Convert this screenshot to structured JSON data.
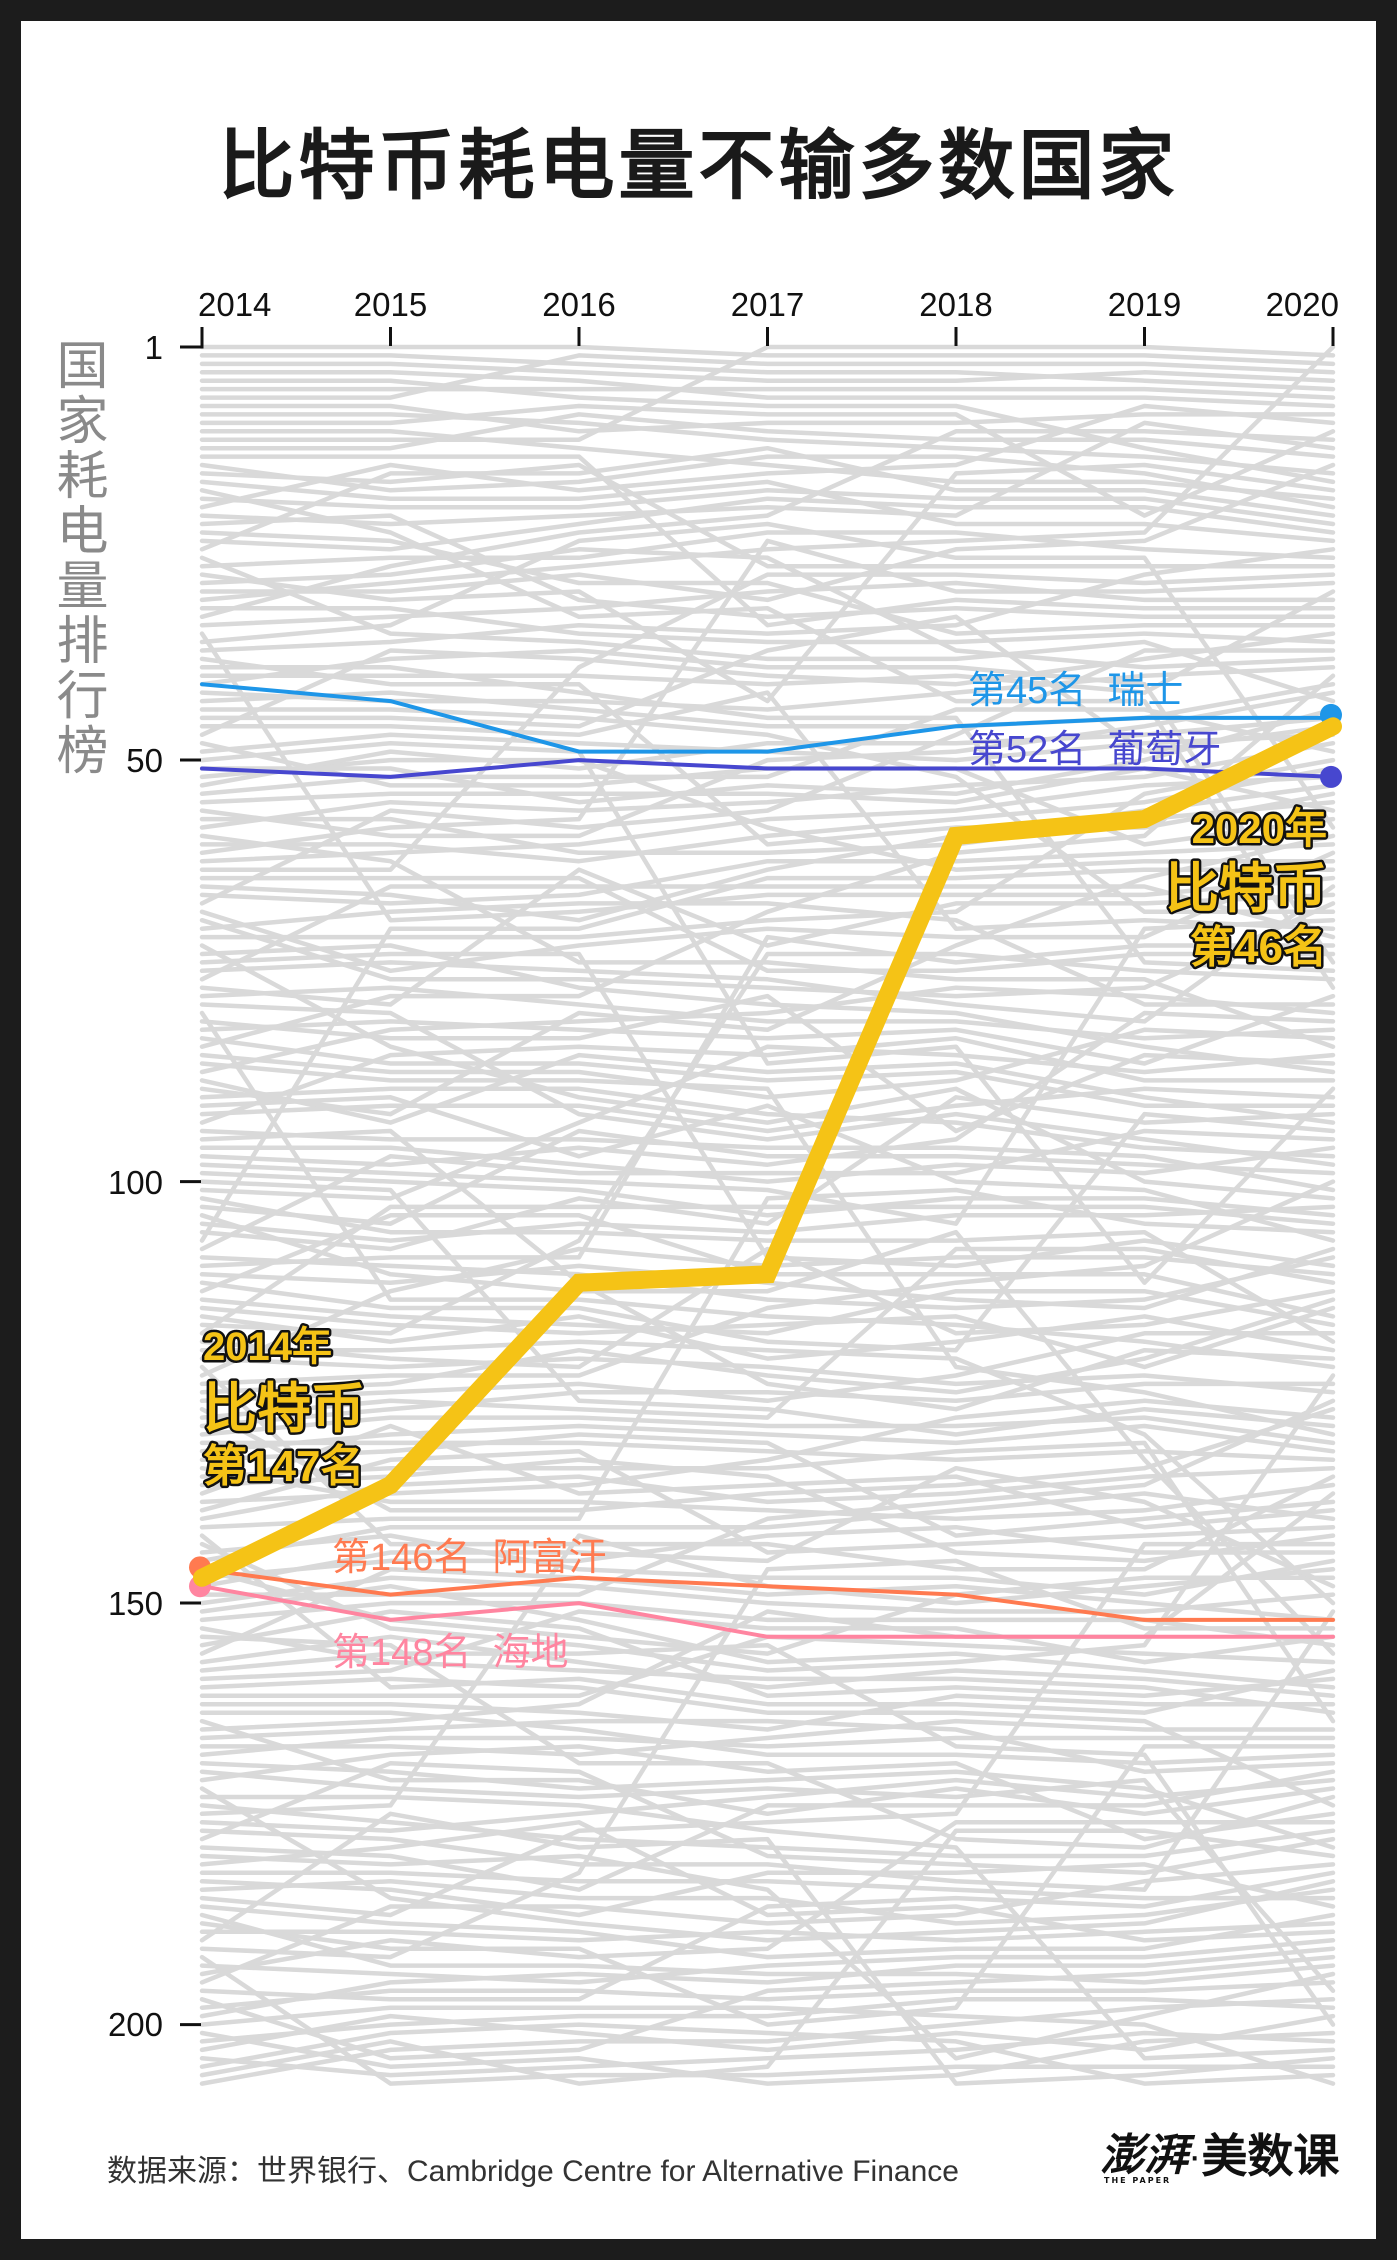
{
  "title": "比特币耗电量不输多数国家",
  "y_axis_title": "国家耗电量排行榜",
  "x_axis": {
    "labels": [
      "2014",
      "2015",
      "2016",
      "2017",
      "2018",
      "2019",
      "2020"
    ]
  },
  "y_axis": {
    "tick_labels": [
      "1",
      "50",
      "100",
      "150",
      "200"
    ]
  },
  "footer": {
    "source": "数据来源：世界银行、Cambridge Centre for Alternative Finance",
    "logo": {
      "cn_brand": "澎湃",
      "separator": "·",
      "column": "美数课",
      "en_brand": "THE PAPER"
    }
  },
  "colors": {
    "frame": "#1c1c1c",
    "panel": "#ffffff",
    "background_lines": "#d9d9d9",
    "bitcoin": "#F5C316",
    "switzerland": "#1E96E8",
    "portugal": "#4747CF",
    "afghanistan": "#FF7A50",
    "haiti": "#FF85A0"
  },
  "chart_data": {
    "type": "line",
    "subtype": "bump (rank) chart",
    "title": "比特币耗电量不输多数国家",
    "xlabel": "",
    "ylabel": "国家耗电量排行榜",
    "x": [
      2014,
      2015,
      2016,
      2017,
      2018,
      2019,
      2020
    ],
    "y_ticks": [
      1,
      50,
      100,
      150,
      200
    ],
    "ylim": [
      1,
      207
    ],
    "y_inverted": true,
    "grid": false,
    "legend": "none (direct labels)",
    "x_axis_position": "top",
    "series": [
      {
        "name": "瑞士",
        "values": [
          41,
          43,
          49,
          49,
          46,
          45,
          45
        ],
        "color": "#1E96E8",
        "line_width": 4,
        "marker_at": "end"
      },
      {
        "name": "葡萄牙",
        "values": [
          51,
          52,
          50,
          51,
          51,
          51,
          52
        ],
        "color": "#4747CF",
        "line_width": 4,
        "marker_at": "end"
      },
      {
        "name": "阿富汗",
        "values": [
          146,
          149,
          147,
          148,
          149,
          152,
          152
        ],
        "color": "#FF7A50",
        "line_width": 4,
        "marker_at": "start"
      },
      {
        "name": "海地",
        "values": [
          148,
          152,
          150,
          154,
          154,
          154,
          154
        ],
        "color": "#FF85A0",
        "line_width": 4,
        "marker_at": "start"
      },
      {
        "name": "比特币",
        "values": [
          147,
          136,
          112,
          111,
          59,
          57,
          46
        ],
        "color": "#F5C316",
        "line_width": 18,
        "marker_at": null
      }
    ],
    "background_series": {
      "count": 207,
      "color": "#d9d9d9",
      "description": "other countries' ranks (grey)"
    },
    "annotations": [
      {
        "id": "switzerland",
        "text": "第45名  瑞士",
        "color": "#1E96E8"
      },
      {
        "id": "portugal",
        "text": "第52名  葡萄牙",
        "color": "#4747CF"
      },
      {
        "id": "afghanistan",
        "text": "第146名  阿富汗",
        "color": "#FF7A50"
      },
      {
        "id": "haiti",
        "text": "第148名  海地",
        "color": "#FF85A0"
      },
      {
        "id": "bitcoin_2020",
        "lines": [
          "2020年",
          "比特币",
          "第46名"
        ],
        "color": "#F5C316"
      },
      {
        "id": "bitcoin_2014",
        "lines": [
          "2014年",
          "比特币",
          "第147名"
        ],
        "color": "#F5C316"
      }
    ]
  }
}
